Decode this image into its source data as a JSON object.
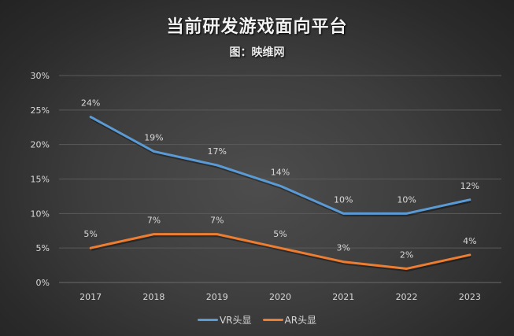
{
  "chart_data": {
    "type": "line",
    "title": "当前研发游戏面向平台",
    "subtitle": "图：映维网",
    "xlabel": "",
    "ylabel": "",
    "categories": [
      "2017",
      "2018",
      "2019",
      "2020",
      "2021",
      "2022",
      "2023"
    ],
    "ylim": [
      0,
      30
    ],
    "yticks": [
      0,
      5,
      10,
      15,
      20,
      25,
      30
    ],
    "ytick_labels": [
      "0%",
      "5%",
      "10%",
      "15%",
      "20%",
      "25%",
      "30%"
    ],
    "grid": true,
    "legend_position": "bottom",
    "series": [
      {
        "name": "VR头显",
        "color": "#5b9bd5",
        "values": [
          24,
          19,
          17,
          14,
          10,
          10,
          12
        ],
        "labels": [
          "24%",
          "19%",
          "17%",
          "14%",
          "10%",
          "10%",
          "12%"
        ]
      },
      {
        "name": "AR头显",
        "color": "#ed7d31",
        "values": [
          5,
          7,
          7,
          5,
          3,
          2,
          4
        ],
        "labels": [
          "5%",
          "7%",
          "7%",
          "5%",
          "3%",
          "2%",
          "4%"
        ]
      }
    ]
  }
}
